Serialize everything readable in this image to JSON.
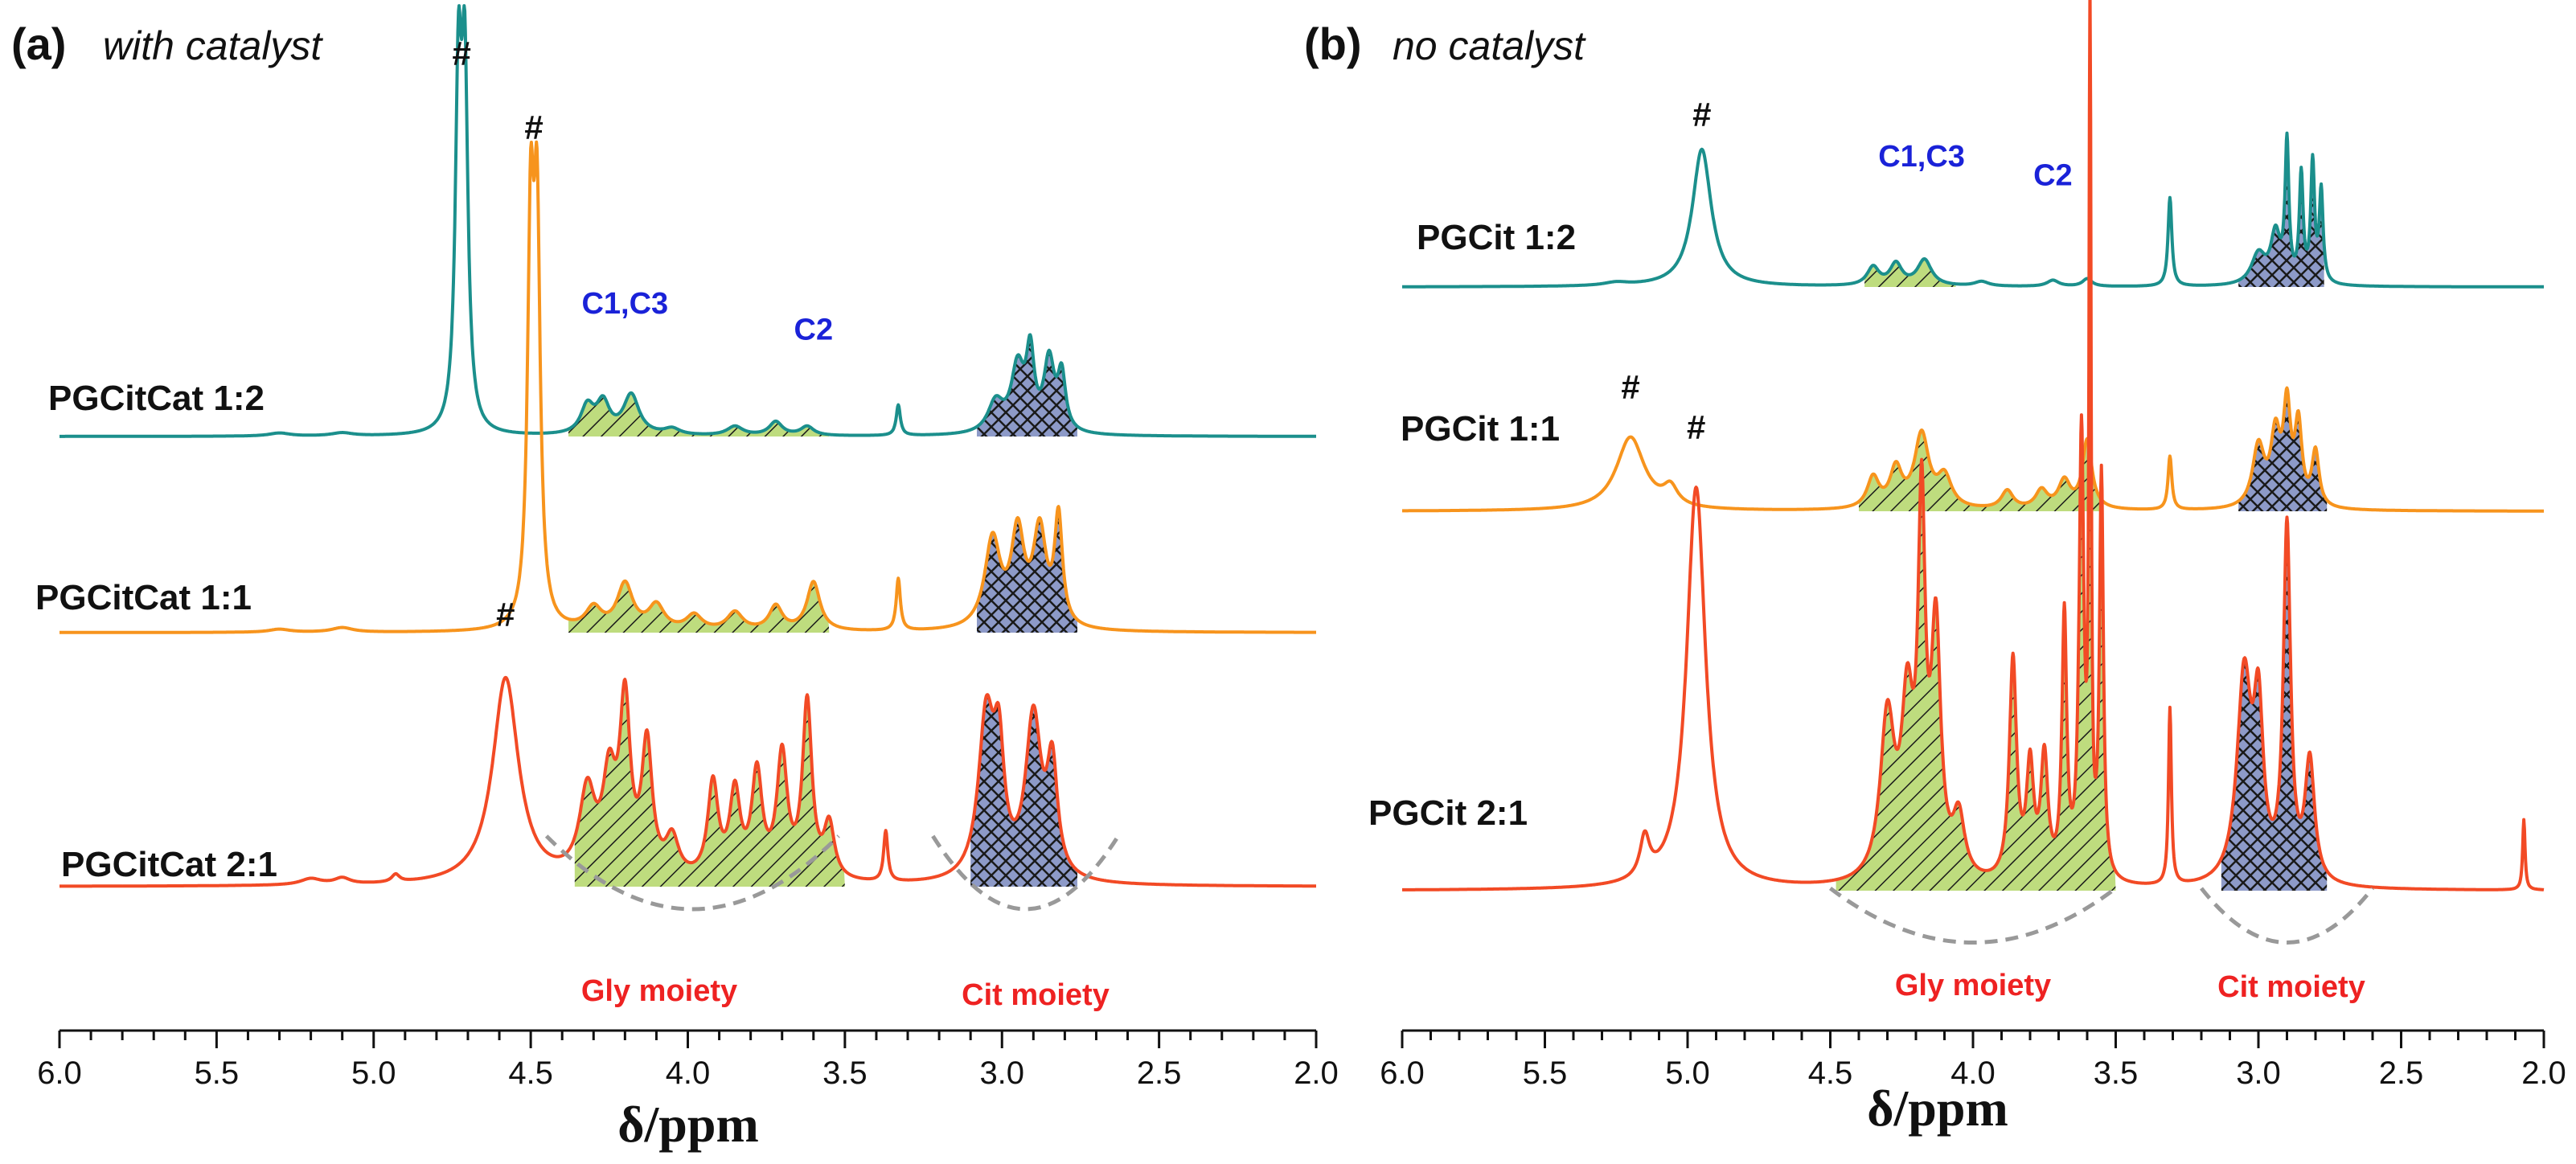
{
  "chart_data": [
    {
      "type": "line",
      "panel_tag": "(a)",
      "title": "with catalyst",
      "xlabel": "δ/ppm",
      "xlim": [
        6.0,
        2.0
      ],
      "x_reversed": true,
      "ticks": [
        "6.0",
        "5.5",
        "5.0",
        "4.5",
        "4.0",
        "3.5",
        "3.0",
        "2.5",
        "2.0"
      ],
      "series": [
        {
          "name": "PGCitCat 1:2",
          "color": "#1b8f8c",
          "peaks": [
            [
              5.3,
              0.02,
              0.04
            ],
            [
              5.1,
              0.02,
              0.04
            ],
            [
              4.73,
              2.2,
              0.012
            ],
            [
              4.71,
              2.2,
              0.012
            ],
            [
              4.32,
              0.18,
              0.025
            ],
            [
              4.27,
              0.2,
              0.025
            ],
            [
              4.18,
              0.26,
              0.03
            ],
            [
              4.05,
              0.04,
              0.03
            ],
            [
              3.85,
              0.06,
              0.03
            ],
            [
              3.72,
              0.09,
              0.025
            ],
            [
              3.62,
              0.06,
              0.025
            ],
            [
              3.33,
              0.2,
              0.008
            ],
            [
              3.02,
              0.2,
              0.03
            ],
            [
              2.95,
              0.42,
              0.025
            ],
            [
              2.91,
              0.48,
              0.015
            ],
            [
              2.85,
              0.46,
              0.02
            ],
            [
              2.81,
              0.36,
              0.015
            ]
          ],
          "hash_labels": [
            {
              "ppm": 4.72,
              "text": "#"
            }
          ],
          "assignments": [
            {
              "ppm": 4.2,
              "text": "C1,C3"
            },
            {
              "ppm": 3.6,
              "text": "C2"
            }
          ],
          "fills": [
            {
              "from": 4.38,
              "to": 3.55,
              "color": "#bedc7e",
              "pattern": "diag"
            },
            {
              "from": 3.08,
              "to": 2.76,
              "color": "#8d9ac8",
              "pattern": "cross"
            }
          ]
        },
        {
          "name": "PGCitCat 1:1",
          "color": "#f7941d",
          "peaks": [
            [
              5.3,
              0.02,
              0.04
            ],
            [
              5.1,
              0.03,
              0.04
            ],
            [
              4.5,
              2.5,
              0.012
            ],
            [
              4.48,
              2.5,
              0.012
            ],
            [
              4.3,
              0.14,
              0.03
            ],
            [
              4.2,
              0.3,
              0.03
            ],
            [
              4.1,
              0.16,
              0.03
            ],
            [
              3.98,
              0.1,
              0.03
            ],
            [
              3.85,
              0.12,
              0.03
            ],
            [
              3.72,
              0.16,
              0.025
            ],
            [
              3.6,
              0.32,
              0.025
            ],
            [
              3.33,
              0.34,
              0.008
            ],
            [
              3.03,
              0.58,
              0.03
            ],
            [
              2.95,
              0.6,
              0.025
            ],
            [
              2.88,
              0.62,
              0.025
            ],
            [
              2.82,
              0.7,
              0.015
            ]
          ],
          "hash_labels": [
            {
              "ppm": 4.49,
              "text": "#"
            }
          ],
          "assignments": [],
          "fills": [
            {
              "from": 4.38,
              "to": 3.55,
              "color": "#bedc7e",
              "pattern": "diag"
            },
            {
              "from": 3.08,
              "to": 2.76,
              "color": "#8d9ac8",
              "pattern": "cross"
            }
          ]
        },
        {
          "name": "PGCitCat 2:1",
          "color": "#f24a25",
          "peaks": [
            [
              5.2,
              0.04,
              0.04
            ],
            [
              5.1,
              0.04,
              0.03
            ],
            [
              4.93,
              0.05,
              0.015
            ],
            [
              4.58,
              1.35,
              0.05
            ],
            [
              4.32,
              0.55,
              0.03
            ],
            [
              4.25,
              0.6,
              0.025
            ],
            [
              4.2,
              1.1,
              0.02
            ],
            [
              4.13,
              0.85,
              0.02
            ],
            [
              4.05,
              0.25,
              0.025
            ],
            [
              3.92,
              0.62,
              0.02
            ],
            [
              3.85,
              0.55,
              0.02
            ],
            [
              3.78,
              0.68,
              0.02
            ],
            [
              3.7,
              0.8,
              0.02
            ],
            [
              3.62,
              1.15,
              0.018
            ],
            [
              3.55,
              0.35,
              0.02
            ],
            [
              3.37,
              0.33,
              0.008
            ],
            [
              3.05,
              1.05,
              0.03
            ],
            [
              3.01,
              0.72,
              0.02
            ],
            [
              2.9,
              1.05,
              0.03
            ],
            [
              2.84,
              0.7,
              0.02
            ]
          ],
          "hash_labels": [
            {
              "ppm": 4.58,
              "text": "#"
            }
          ],
          "assignments": [],
          "fills": [
            {
              "from": 4.36,
              "to": 3.5,
              "color": "#bedc7e",
              "pattern": "diag"
            },
            {
              "from": 3.1,
              "to": 2.76,
              "color": "#8d9ac8",
              "pattern": "cross"
            }
          ]
        }
      ],
      "moieties": [
        {
          "text": "Gly moiety",
          "from": 4.45,
          "to": 3.52
        },
        {
          "text": "Cit moiety",
          "from": 3.22,
          "to": 2.63
        }
      ]
    },
    {
      "type": "line",
      "panel_tag": "(b)",
      "title": "no catalyst",
      "xlabel": "δ/ppm",
      "xlim": [
        6.0,
        2.0
      ],
      "x_reversed": true,
      "ticks": [
        "6.0",
        "5.5",
        "5.0",
        "4.5",
        "4.0",
        "3.5",
        "3.0",
        "2.5",
        "2.0"
      ],
      "series": [
        {
          "name": "PGCit 1:2",
          "color": "#1b8f8c",
          "peaks": [
            [
              5.25,
              0.02,
              0.05
            ],
            [
              4.95,
              0.9,
              0.04
            ],
            [
              4.35,
              0.12,
              0.025
            ],
            [
              4.27,
              0.14,
              0.025
            ],
            [
              4.17,
              0.17,
              0.03
            ],
            [
              3.97,
              0.03,
              0.03
            ],
            [
              3.72,
              0.04,
              0.025
            ],
            [
              3.6,
              0.05,
              0.02
            ],
            [
              3.31,
              0.58,
              0.008
            ],
            [
              3.0,
              0.2,
              0.03
            ],
            [
              2.94,
              0.32,
              0.02
            ],
            [
              2.9,
              0.9,
              0.008
            ],
            [
              2.85,
              0.7,
              0.008
            ],
            [
              2.81,
              0.78,
              0.008
            ],
            [
              2.78,
              0.6,
              0.008
            ]
          ],
          "hash_labels": [
            {
              "ppm": 4.95,
              "text": "#"
            }
          ],
          "assignments": [
            {
              "ppm": 4.18,
              "text": "C1,C3"
            },
            {
              "ppm": 3.72,
              "text": "C2"
            }
          ],
          "fills": [
            {
              "from": 4.38,
              "to": 4.06,
              "color": "#bedc7e",
              "pattern": "diag"
            },
            {
              "from": 3.07,
              "to": 2.77,
              "color": "#8d9ac8",
              "pattern": "cross"
            }
          ]
        },
        {
          "name": "PGCit 1:1",
          "color": "#f7941d",
          "peaks": [
            [
              5.2,
              0.48,
              0.06
            ],
            [
              5.06,
              0.12,
              0.03
            ],
            [
              4.35,
              0.2,
              0.025
            ],
            [
              4.27,
              0.25,
              0.025
            ],
            [
              4.18,
              0.48,
              0.03
            ],
            [
              4.1,
              0.2,
              0.03
            ],
            [
              3.88,
              0.12,
              0.025
            ],
            [
              3.76,
              0.12,
              0.025
            ],
            [
              3.68,
              0.18,
              0.025
            ],
            [
              3.6,
              0.45,
              0.02
            ],
            [
              3.31,
              0.35,
              0.008
            ],
            [
              3.0,
              0.4,
              0.025
            ],
            [
              2.94,
              0.45,
              0.02
            ],
            [
              2.9,
              0.62,
              0.015
            ],
            [
              2.86,
              0.52,
              0.015
            ],
            [
              2.8,
              0.36,
              0.015
            ]
          ],
          "hash_labels": [
            {
              "ppm": 5.2,
              "text": "#"
            }
          ],
          "assignments": [],
          "fills": [
            {
              "from": 4.4,
              "to": 3.55,
              "color": "#bedc7e",
              "pattern": "diag"
            },
            {
              "from": 3.07,
              "to": 2.76,
              "color": "#8d9ac8",
              "pattern": "cross"
            }
          ]
        },
        {
          "name": "PGCit 2:1",
          "color": "#f24a25",
          "peaks": [
            [
              5.15,
              0.2,
              0.02
            ],
            [
              4.97,
              2.0,
              0.04
            ],
            [
              4.3,
              0.8,
              0.03
            ],
            [
              4.23,
              0.8,
              0.025
            ],
            [
              4.18,
              1.75,
              0.015
            ],
            [
              4.13,
              1.2,
              0.02
            ],
            [
              4.05,
              0.3,
              0.025
            ],
            [
              3.86,
              1.1,
              0.015
            ],
            [
              3.8,
              0.55,
              0.015
            ],
            [
              3.75,
              0.6,
              0.015
            ],
            [
              3.68,
              1.3,
              0.01
            ],
            [
              3.62,
              2.2,
              0.01
            ],
            [
              3.59,
              4.4,
              0.004
            ],
            [
              3.55,
              2.0,
              0.008
            ],
            [
              3.31,
              0.88,
              0.006
            ],
            [
              3.05,
              1.02,
              0.03
            ],
            [
              3.0,
              0.78,
              0.02
            ],
            [
              2.9,
              1.75,
              0.015
            ],
            [
              2.82,
              0.6,
              0.02
            ],
            [
              2.07,
              0.35,
              0.005
            ]
          ],
          "hash_labels": [
            {
              "ppm": 4.97,
              "text": "#"
            }
          ],
          "assignments": [],
          "fills": [
            {
              "from": 4.48,
              "to": 3.5,
              "color": "#bedc7e",
              "pattern": "diag"
            },
            {
              "from": 3.13,
              "to": 2.76,
              "color": "#8d9ac8",
              "pattern": "cross"
            }
          ]
        }
      ],
      "moieties": [
        {
          "text": "Gly moiety",
          "from": 4.5,
          "to": 3.5
        },
        {
          "text": "Cit moiety",
          "from": 3.2,
          "to": 2.6
        }
      ]
    }
  ]
}
